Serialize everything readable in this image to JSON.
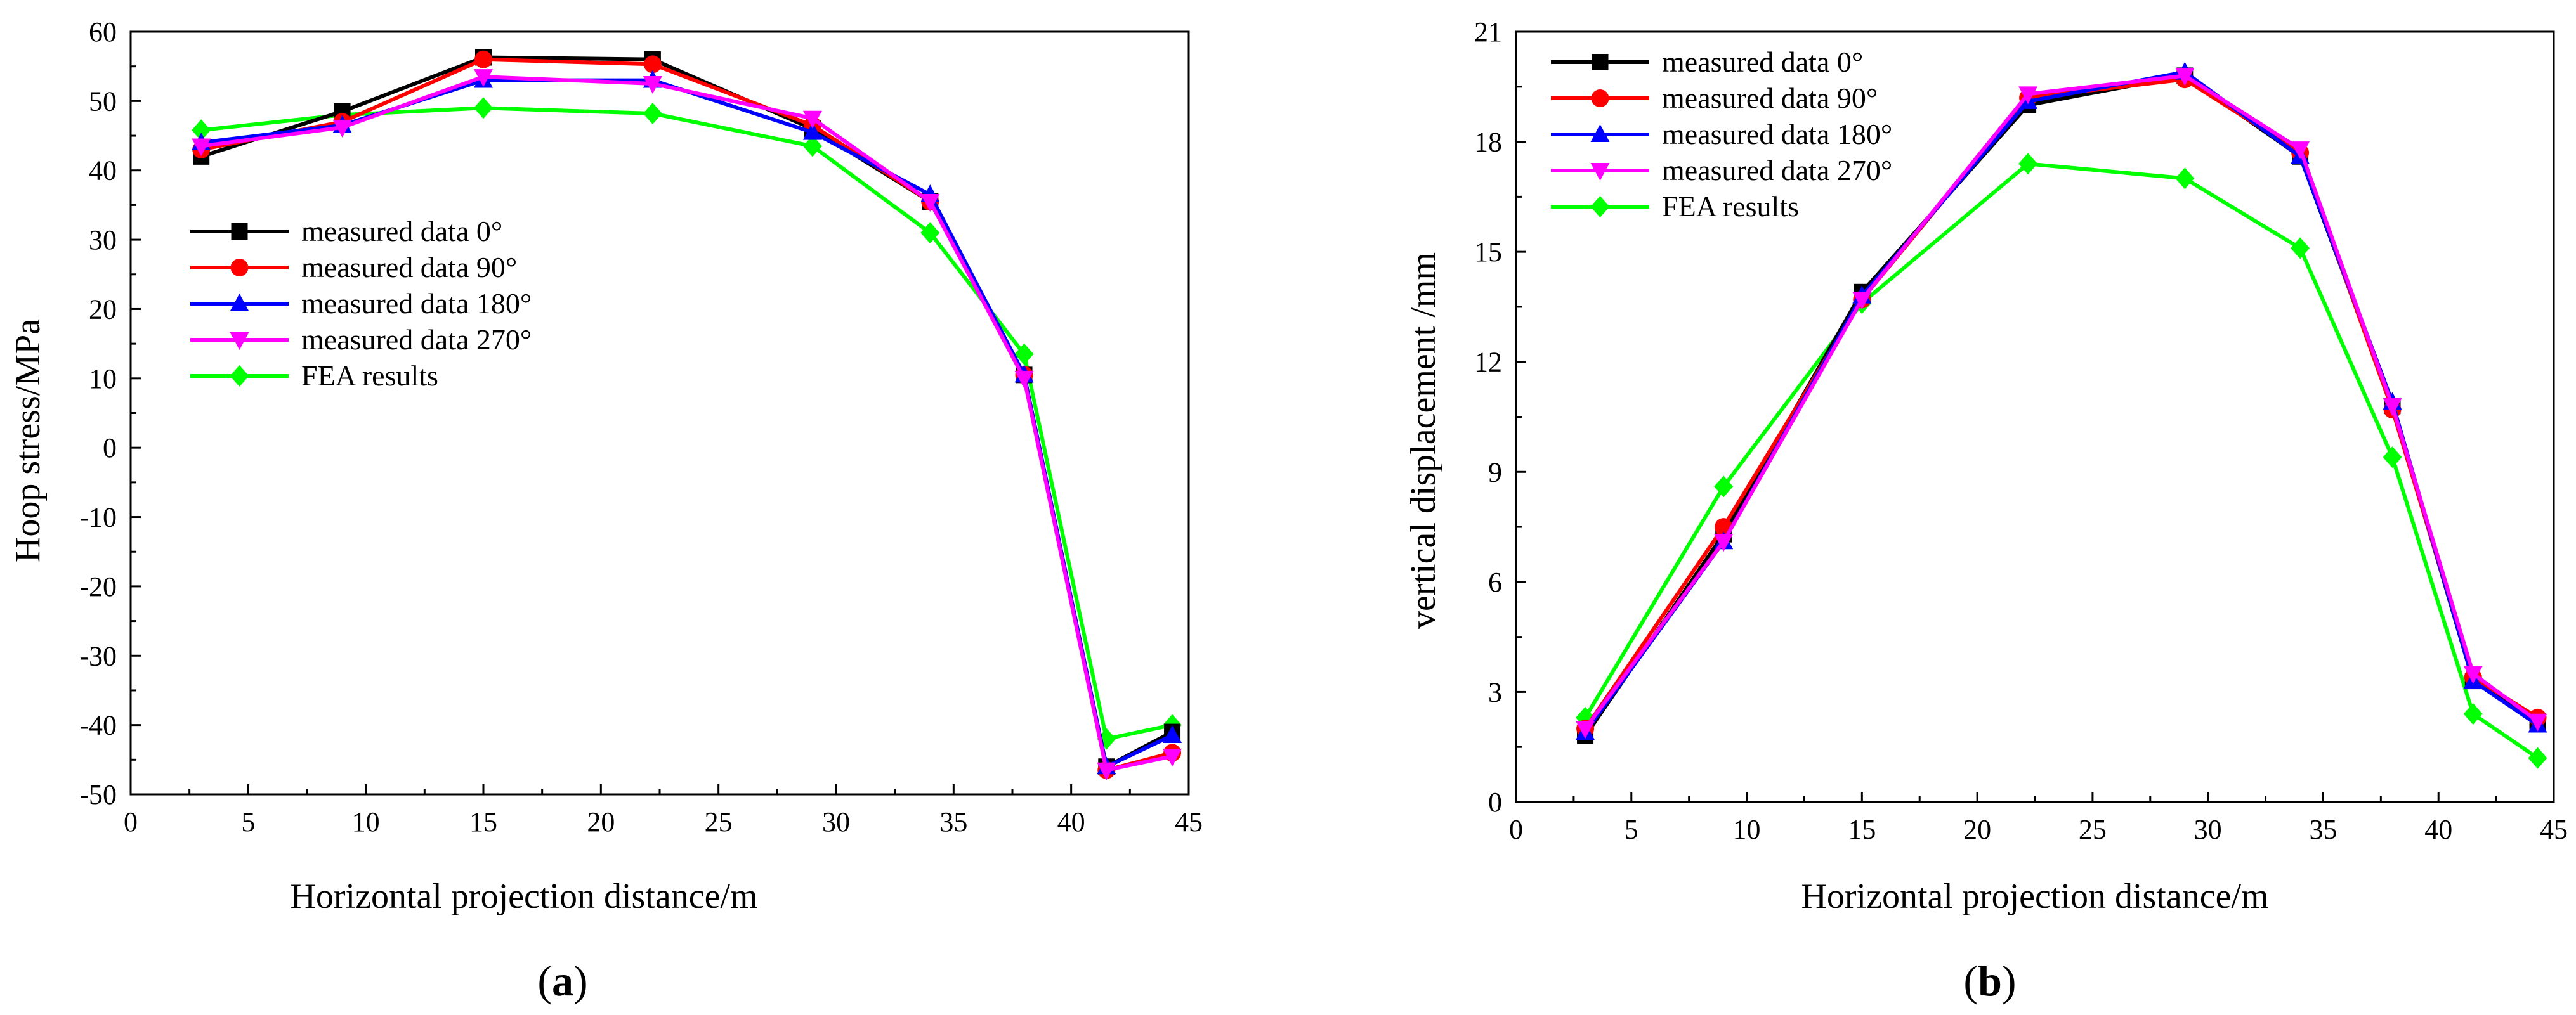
{
  "series_style": [
    {
      "name": "measured data 0°",
      "color": "#000000",
      "marker": "square"
    },
    {
      "name": "measured data 90°",
      "color": "#ff0000",
      "marker": "circle"
    },
    {
      "name": "measured data 180°",
      "color": "#0000ff",
      "marker": "triangle-up"
    },
    {
      "name": "measured data 270°",
      "color": "#ff00ff",
      "marker": "triangle-down"
    },
    {
      "name": "FEA results",
      "color": "#00ff00",
      "marker": "diamond"
    }
  ],
  "chart_data": [
    {
      "id": "a",
      "type": "line",
      "caption": {
        "open": "(",
        "letter": "a",
        "close": ")"
      },
      "xlabel": "Horizontal projection distance/m",
      "ylabel": "Hoop stress/MPa",
      "xlim": [
        0,
        45
      ],
      "ylim": [
        -50,
        60
      ],
      "xticks": [
        0,
        5,
        10,
        15,
        20,
        25,
        30,
        35,
        40,
        45
      ],
      "yticks": [
        -50,
        -40,
        -30,
        -20,
        -10,
        0,
        10,
        20,
        30,
        40,
        50,
        60
      ],
      "x": [
        3,
        9,
        15,
        22.2,
        29,
        34,
        38,
        41.5,
        44.3
      ],
      "grid": false,
      "legend_position": "center-left",
      "series": [
        {
          "name": "measured data 0°",
          "values": [
            42,
            48.5,
            56.3,
            56,
            46,
            35.5,
            10.5,
            -46,
            -41
          ]
        },
        {
          "name": "measured data 90°",
          "values": [
            43,
            47,
            56,
            55.3,
            46.5,
            35.5,
            10.5,
            -46.5,
            -44
          ]
        },
        {
          "name": "measured data 180°",
          "values": [
            44,
            46.5,
            53,
            53,
            45.5,
            36.5,
            10.5,
            -46,
            -41.5
          ]
        },
        {
          "name": "measured data 270°",
          "values": [
            43.5,
            46.2,
            53.5,
            52.5,
            47.5,
            35.5,
            10,
            -46.5,
            -44.5
          ]
        },
        {
          "name": "FEA results",
          "values": [
            45.8,
            48,
            49,
            48.2,
            43.5,
            31,
            13.5,
            -42,
            -40
          ]
        }
      ]
    },
    {
      "id": "b",
      "type": "line",
      "caption": {
        "open": "(",
        "letter": "b",
        "close": ")"
      },
      "xlabel": "Horizontal projection distance/m",
      "ylabel": "vertical displacement /mm",
      "xlim": [
        0,
        45
      ],
      "ylim": [
        0,
        21
      ],
      "xticks": [
        0,
        5,
        10,
        15,
        20,
        25,
        30,
        35,
        40,
        45
      ],
      "yticks": [
        0,
        3,
        6,
        9,
        12,
        15,
        18,
        21
      ],
      "x": [
        3,
        9,
        15,
        22.2,
        29,
        34,
        38,
        41.5,
        44.3
      ],
      "grid": false,
      "legend_position": "top-left",
      "series": [
        {
          "name": "measured data 0°",
          "values": [
            1.8,
            7.3,
            13.9,
            19.0,
            19.8,
            17.6,
            10.8,
            3.3,
            2.2
          ]
        },
        {
          "name": "measured data 90°",
          "values": [
            2.0,
            7.5,
            13.7,
            19.2,
            19.7,
            17.7,
            10.7,
            3.4,
            2.3
          ]
        },
        {
          "name": "measured data 180°",
          "values": [
            1.9,
            7.1,
            13.8,
            19.1,
            19.9,
            17.6,
            10.9,
            3.3,
            2.1
          ]
        },
        {
          "name": "measured data 270°",
          "values": [
            2.0,
            7.1,
            13.7,
            19.3,
            19.8,
            17.8,
            10.8,
            3.5,
            2.2
          ]
        },
        {
          "name": "FEA results",
          "values": [
            2.3,
            8.6,
            13.6,
            17.4,
            17.0,
            15.1,
            9.4,
            2.4,
            1.2
          ]
        }
      ]
    }
  ]
}
